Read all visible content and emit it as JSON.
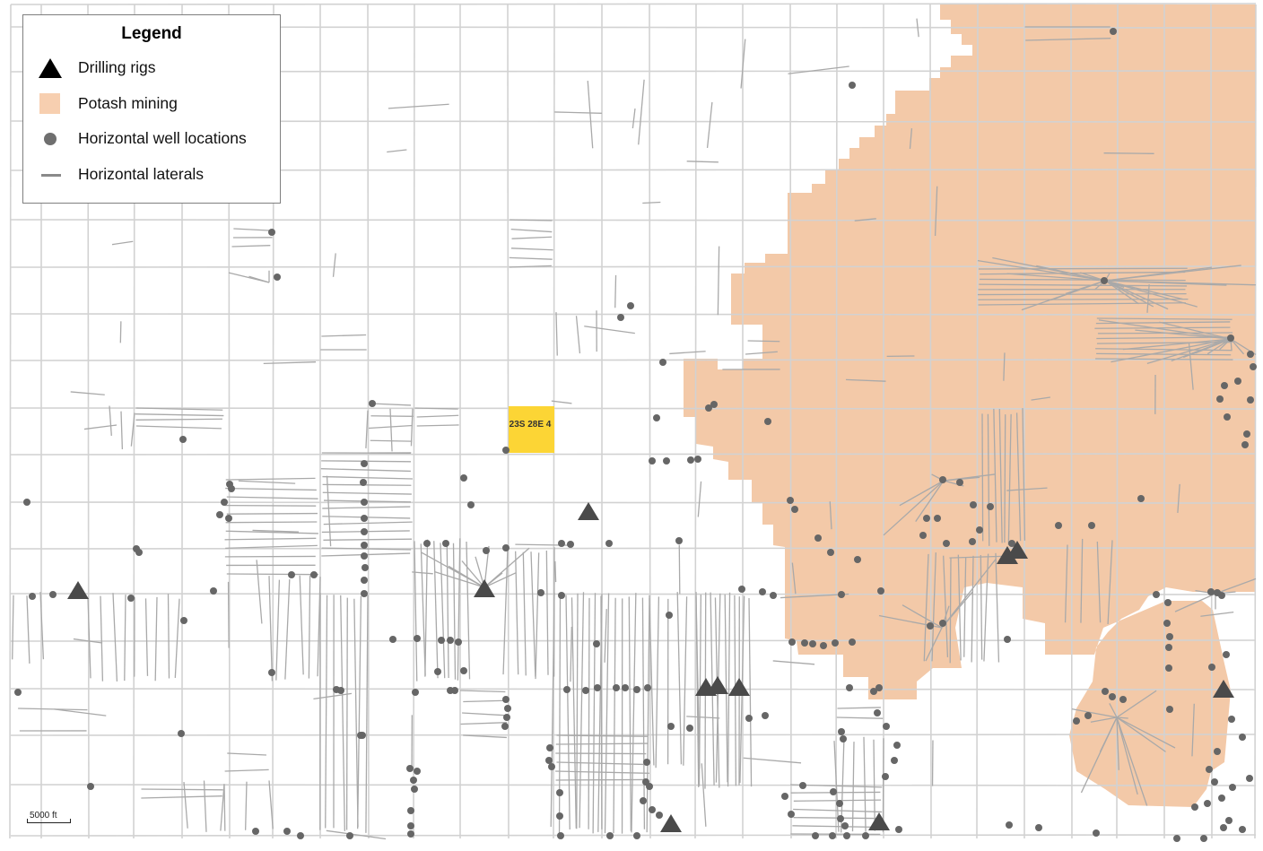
{
  "legend": {
    "title": "Legend",
    "items": [
      {
        "symbol": "triangle",
        "label": "Drilling rigs",
        "color": "#000000"
      },
      {
        "symbol": "square",
        "label": "Potash mining",
        "color": "#f7cfb0"
      },
      {
        "symbol": "circle",
        "label": "Horizontal well locations",
        "color": "#6f6f6f"
      },
      {
        "symbol": "line",
        "label": "Horizontal laterals",
        "color": "#8a8a8a"
      }
    ]
  },
  "highlighted_section": {
    "label": "23S 28E 4",
    "color": "#fcd535"
  },
  "scale_bar": {
    "label": "5000 ft"
  },
  "colors": {
    "grid": "#d2d2d2",
    "potash": "#f3c9a8",
    "laterals": "#a9a9a9",
    "wells": "#666666",
    "rigs": "#4a4a4a"
  }
}
